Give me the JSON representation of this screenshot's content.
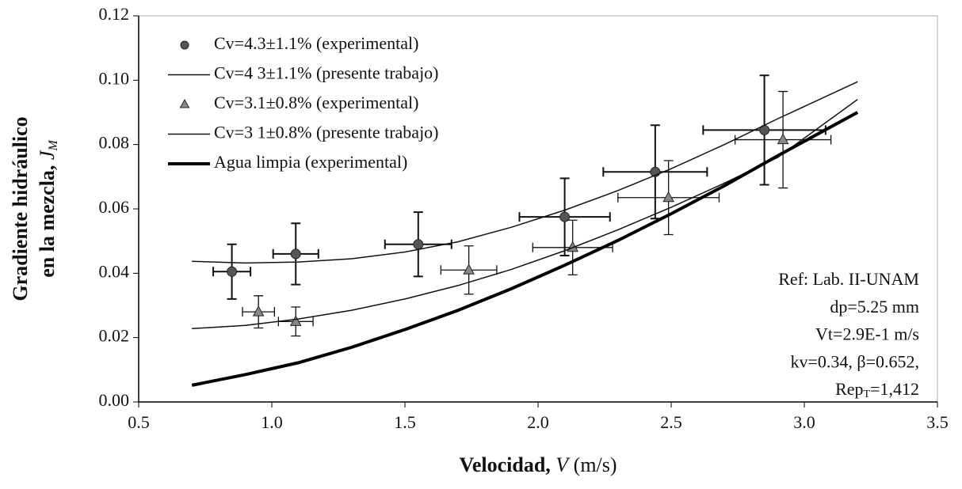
{
  "chart_data": {
    "type": "scatter",
    "x_label": [
      "Velocidad, ",
      "V",
      " (m/s)"
    ],
    "y_label": [
      "Gradiente hidráulico",
      "en la mezcla, "
    ],
    "y_label_symbol": {
      "base": "J",
      "sub": "M"
    },
    "xlim": [
      0.5,
      3.5
    ],
    "xticks": [
      0.5,
      {
        "value": 1,
        "label": "1.0"
      },
      1.5,
      {
        "value": 2,
        "label": "2.0"
      },
      2.5,
      {
        "value": 3,
        "label": "3.0"
      },
      3.5
    ],
    "ylim": [
      0,
      0.12
    ],
    "yticks": [
      {
        "value": 0,
        "label": "0.00"
      },
      {
        "value": 0.02,
        "label": "0.02"
      },
      {
        "value": 0.04,
        "label": "0.04"
      },
      {
        "value": 0.06,
        "label": "0.06"
      },
      {
        "value": 0.08,
        "label": "0.08"
      },
      {
        "value": 0.1,
        "label": "0.10"
      },
      {
        "value": 0.12,
        "label": "0.12"
      }
    ],
    "legend": "top-left",
    "series": [
      {
        "name": "Cv=4.3±1.1% (experimental)",
        "kind": "points",
        "marker": "circle",
        "color": "#555555",
        "x": [
          0.85,
          1.09,
          1.55,
          2.1,
          2.44,
          2.85
        ],
        "values": [
          0.0405,
          0.046,
          0.049,
          0.0575,
          0.0715,
          0.0845
        ],
        "x_err": [
          0.07,
          0.085,
          0.125,
          0.17,
          0.195,
          0.23
        ],
        "y_err": [
          0.0085,
          0.0095,
          0.01,
          0.012,
          0.0145,
          0.017
        ]
      },
      {
        "name": "Cv=4 3±1.1% (presente trabajo)",
        "kind": "line",
        "color": "#111111",
        "width": 1.5,
        "x": [
          0.7,
          0.9,
          1.1,
          1.3,
          1.5,
          1.7,
          1.9,
          2.1,
          2.3,
          2.5,
          2.7,
          2.9,
          3.2
        ],
        "values": [
          0.0437,
          0.0432,
          0.0435,
          0.0445,
          0.0466,
          0.0498,
          0.0543,
          0.0596,
          0.0657,
          0.0725,
          0.08,
          0.088,
          0.0995
        ]
      },
      {
        "name": "Cv=3.1±0.8% (experimental)",
        "kind": "points",
        "marker": "triangle",
        "color": "#888888",
        "x": [
          0.95,
          1.09,
          1.74,
          2.13,
          2.49,
          2.92
        ],
        "values": [
          0.028,
          0.025,
          0.041,
          0.048,
          0.0635,
          0.0815
        ],
        "x_err": [
          0.06,
          0.065,
          0.105,
          0.15,
          0.19,
          0.18
        ],
        "y_err": [
          0.005,
          0.0045,
          0.0075,
          0.0085,
          0.0115,
          0.015
        ]
      },
      {
        "name": "Cv=3 1±0.8% (presente trabajo)",
        "kind": "line",
        "color": "#111111",
        "width": 1.5,
        "x": [
          0.7,
          0.9,
          1.1,
          1.3,
          1.5,
          1.7,
          1.9,
          2.1,
          2.3,
          2.5,
          2.7,
          2.9,
          3.2
        ],
        "values": [
          0.0228,
          0.0238,
          0.0258,
          0.0285,
          0.032,
          0.0362,
          0.0412,
          0.047,
          0.0535,
          0.0605,
          0.068,
          0.076,
          0.094
        ]
      },
      {
        "name": "Agua limpia (experimental)",
        "kind": "line",
        "color": "#000000",
        "width": 4,
        "x": [
          0.7,
          0.9,
          1.1,
          1.3,
          1.5,
          1.7,
          1.9,
          2.1,
          2.3,
          2.5,
          2.7,
          2.9,
          3.2
        ],
        "values": [
          0.0052,
          0.0085,
          0.0122,
          0.017,
          0.0225,
          0.0285,
          0.0352,
          0.0425,
          0.0502,
          0.0585,
          0.0672,
          0.0765,
          0.09
        ]
      }
    ],
    "annotation": [
      "Ref: Lab. II-UNAM",
      "dp=5.25 mm",
      "Vt=2.9E-1 m/s",
      "kv=0.34, β=0.652,"
    ],
    "annotation_rep": {
      "base": "Rep",
      "sub": "T",
      "rest": "=1,412"
    }
  }
}
